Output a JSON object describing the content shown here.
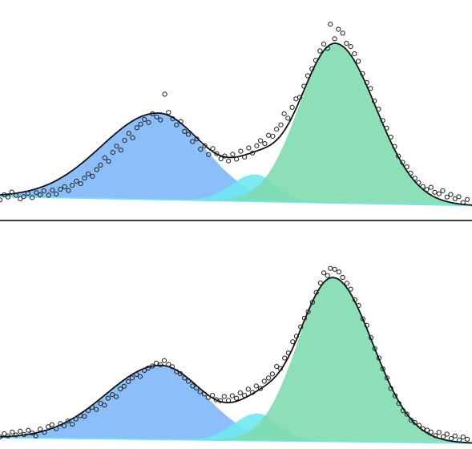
{
  "colors": {
    "peak_1": "#7fb8f8",
    "peak_2": "#6fe8ef",
    "peak_3": "#7fdcae",
    "envelope": "#111111",
    "points": "#222222",
    "axis": "#000000",
    "background": "#ffffff"
  },
  "chart_data": [
    {
      "type": "area",
      "title": "",
      "xlabel": "",
      "ylabel": "",
      "grid": false,
      "legend": "none",
      "xlim": [
        0,
        100
      ],
      "ylim": [
        0,
        1.0
      ],
      "baseline": {
        "start": 0.03,
        "end": -0.02
      },
      "peaks": [
        {
          "color_key": "peak_1",
          "center": 33.5,
          "height": 0.48,
          "left_width": 12.0,
          "right_width": 9.8
        },
        {
          "color_key": "peak_2",
          "center": 54.0,
          "height": 0.15,
          "left_width": 5.0,
          "right_width": 4.6
        },
        {
          "color_key": "peak_3",
          "center": 71.0,
          "height": 0.885,
          "left_width": 7.6,
          "right_width": 8.6
        }
      ],
      "envelope": true,
      "points": [
        [
          0.0,
          0.012
        ],
        [
          0.9,
          0.04
        ],
        [
          1.7,
          0.028
        ],
        [
          2.5,
          0.055
        ],
        [
          3.4,
          0.037
        ],
        [
          4.3,
          0.018
        ],
        [
          5.0,
          0.03
        ],
        [
          5.9,
          0.048
        ],
        [
          6.8,
          0.025
        ],
        [
          7.7,
          0.052
        ],
        [
          8.5,
          0.04
        ],
        [
          9.3,
          0.062
        ],
        [
          10.3,
          0.038
        ],
        [
          11.1,
          0.066
        ],
        [
          11.9,
          0.045
        ],
        [
          12.8,
          0.071
        ],
        [
          13.7,
          0.085
        ],
        [
          14.5,
          0.064
        ],
        [
          15.3,
          0.093
        ],
        [
          16.2,
          0.116
        ],
        [
          17.1,
          0.102
        ],
        [
          17.9,
          0.133
        ],
        [
          18.7,
          0.156
        ],
        [
          19.6,
          0.143
        ],
        [
          20.5,
          0.18
        ],
        [
          21.3,
          0.205
        ],
        [
          22.2,
          0.245
        ],
        [
          23.0,
          0.226
        ],
        [
          23.9,
          0.275
        ],
        [
          24.7,
          0.31
        ],
        [
          25.6,
          0.288
        ],
        [
          26.4,
          0.342
        ],
        [
          27.3,
          0.381
        ],
        [
          28.1,
          0.356
        ],
        [
          29.0,
          0.412
        ],
        [
          29.8,
          0.432
        ],
        [
          30.6,
          0.458
        ],
        [
          31.5,
          0.441
        ],
        [
          32.3,
          0.489
        ],
        [
          33.2,
          0.472
        ],
        [
          34.0,
          0.455
        ],
        [
          34.9,
          0.598
        ],
        [
          35.7,
          0.497
        ],
        [
          36.6,
          0.462
        ],
        [
          37.4,
          0.428
        ],
        [
          38.3,
          0.446
        ],
        [
          39.1,
          0.392
        ],
        [
          39.9,
          0.375
        ],
        [
          40.8,
          0.335
        ],
        [
          41.7,
          0.35
        ],
        [
          42.5,
          0.293
        ],
        [
          43.4,
          0.312
        ],
        [
          44.2,
          0.263
        ],
        [
          45.1,
          0.296
        ],
        [
          45.9,
          0.268
        ],
        [
          46.8,
          0.24
        ],
        [
          47.6,
          0.255
        ],
        [
          48.4,
          0.228
        ],
        [
          49.3,
          0.265
        ],
        [
          50.1,
          0.238
        ],
        [
          51.0,
          0.282
        ],
        [
          51.8,
          0.25
        ],
        [
          52.7,
          0.3
        ],
        [
          53.5,
          0.272
        ],
        [
          54.4,
          0.312
        ],
        [
          55.2,
          0.34
        ],
        [
          56.1,
          0.324
        ],
        [
          56.9,
          0.37
        ],
        [
          57.8,
          0.365
        ],
        [
          58.6,
          0.404
        ],
        [
          59.5,
          0.428
        ],
        [
          60.2,
          0.49
        ],
        [
          61.0,
          0.465
        ],
        [
          61.9,
          0.525
        ],
        [
          62.7,
          0.572
        ],
        [
          63.5,
          0.58
        ],
        [
          64.4,
          0.642
        ],
        [
          65.2,
          0.7
        ],
        [
          66.1,
          0.738
        ],
        [
          66.9,
          0.786
        ],
        [
          67.8,
          0.838
        ],
        [
          68.6,
          0.876
        ],
        [
          69.4,
          0.852
        ],
        [
          70.0,
          0.986
        ],
        [
          70.9,
          0.905
        ],
        [
          71.7,
          0.958
        ],
        [
          72.6,
          0.936
        ],
        [
          73.4,
          0.88
        ],
        [
          74.3,
          0.862
        ],
        [
          75.1,
          0.822
        ],
        [
          75.9,
          0.78
        ],
        [
          76.8,
          0.712
        ],
        [
          77.7,
          0.662
        ],
        [
          78.5,
          0.63
        ],
        [
          79.3,
          0.56
        ],
        [
          80.2,
          0.515
        ],
        [
          81.1,
          0.452
        ],
        [
          81.9,
          0.41
        ],
        [
          82.8,
          0.36
        ],
        [
          83.6,
          0.308
        ],
        [
          84.4,
          0.255
        ],
        [
          85.3,
          0.22
        ],
        [
          86.2,
          0.195
        ],
        [
          87.0,
          0.16
        ],
        [
          87.9,
          0.132
        ],
        [
          88.7,
          0.108
        ],
        [
          89.6,
          0.086
        ],
        [
          90.4,
          0.07
        ],
        [
          91.3,
          0.082
        ],
        [
          92.1,
          0.054
        ],
        [
          93.0,
          0.046
        ],
        [
          93.8,
          0.063
        ],
        [
          94.7,
          0.028
        ],
        [
          95.5,
          0.042
        ],
        [
          96.4,
          0.018
        ],
        [
          97.2,
          0.03
        ],
        [
          98.1,
          -0.003
        ],
        [
          99.0,
          0.014
        ]
      ]
    },
    {
      "type": "area",
      "title": "",
      "xlabel": "",
      "ylabel": "",
      "grid": false,
      "legend": "none",
      "xlim": [
        0,
        100
      ],
      "ylim": [
        0,
        1.0
      ],
      "baseline": {
        "start": 0.0,
        "end": -0.03
      },
      "peaks": [
        {
          "color_key": "peak_1",
          "center": 34.0,
          "height": 0.41,
          "left_width": 11.5,
          "right_width": 9.4
        },
        {
          "color_key": "peak_2",
          "center": 54.5,
          "height": 0.15,
          "left_width": 5.0,
          "right_width": 4.6
        },
        {
          "color_key": "peak_3",
          "center": 70.5,
          "height": 0.905,
          "left_width": 7.4,
          "right_width": 8.4
        }
      ],
      "envelope": true,
      "points": [
        [
          0.0,
          0.005
        ],
        [
          0.9,
          0.022
        ],
        [
          1.7,
          0.01
        ],
        [
          2.6,
          0.032
        ],
        [
          3.4,
          0.015
        ],
        [
          4.3,
          0.036
        ],
        [
          5.1,
          0.018
        ],
        [
          6.0,
          0.041
        ],
        [
          6.8,
          0.026
        ],
        [
          7.6,
          0.01
        ],
        [
          8.5,
          0.048
        ],
        [
          9.4,
          0.03
        ],
        [
          10.2,
          0.06
        ],
        [
          11.0,
          0.072
        ],
        [
          11.9,
          0.05
        ],
        [
          12.8,
          0.078
        ],
        [
          13.6,
          0.066
        ],
        [
          14.4,
          0.092
        ],
        [
          15.3,
          0.075
        ],
        [
          16.1,
          0.104
        ],
        [
          17.0,
          0.122
        ],
        [
          17.9,
          0.118
        ],
        [
          18.7,
          0.15
        ],
        [
          19.5,
          0.168
        ],
        [
          20.4,
          0.156
        ],
        [
          21.3,
          0.19
        ],
        [
          22.1,
          0.18
        ],
        [
          22.9,
          0.218
        ],
        [
          23.8,
          0.238
        ],
        [
          24.6,
          0.227
        ],
        [
          25.5,
          0.27
        ],
        [
          26.3,
          0.284
        ],
        [
          27.2,
          0.31
        ],
        [
          28.0,
          0.33
        ],
        [
          28.9,
          0.35
        ],
        [
          29.7,
          0.338
        ],
        [
          30.6,
          0.372
        ],
        [
          31.4,
          0.385
        ],
        [
          32.3,
          0.396
        ],
        [
          33.1,
          0.412
        ],
        [
          34.0,
          0.403
        ],
        [
          34.8,
          0.426
        ],
        [
          35.7,
          0.405
        ],
        [
          36.5,
          0.392
        ],
        [
          37.4,
          0.365
        ],
        [
          38.2,
          0.354
        ],
        [
          39.1,
          0.33
        ],
        [
          39.9,
          0.312
        ],
        [
          40.8,
          0.286
        ],
        [
          41.6,
          0.275
        ],
        [
          42.4,
          0.254
        ],
        [
          43.3,
          0.242
        ],
        [
          44.1,
          0.222
        ],
        [
          45.0,
          0.234
        ],
        [
          45.8,
          0.21
        ],
        [
          46.7,
          0.205
        ],
        [
          47.5,
          0.228
        ],
        [
          48.4,
          0.206
        ],
        [
          49.2,
          0.232
        ],
        [
          50.1,
          0.218
        ],
        [
          50.9,
          0.248
        ],
        [
          51.8,
          0.234
        ],
        [
          52.6,
          0.268
        ],
        [
          53.5,
          0.25
        ],
        [
          54.3,
          0.286
        ],
        [
          55.2,
          0.272
        ],
        [
          56.0,
          0.312
        ],
        [
          56.9,
          0.33
        ],
        [
          57.7,
          0.352
        ],
        [
          58.6,
          0.394
        ],
        [
          59.4,
          0.382
        ],
        [
          60.3,
          0.44
        ],
        [
          61.1,
          0.468
        ],
        [
          62.0,
          0.53
        ],
        [
          62.8,
          0.56
        ],
        [
          63.7,
          0.612
        ],
        [
          64.5,
          0.66
        ],
        [
          65.3,
          0.695
        ],
        [
          66.2,
          0.748
        ],
        [
          67.0,
          0.802
        ],
        [
          67.9,
          0.855
        ],
        [
          68.6,
          0.91
        ],
        [
          69.4,
          0.895
        ],
        [
          70.0,
          0.935
        ],
        [
          70.9,
          0.93
        ],
        [
          71.8,
          0.915
        ],
        [
          72.6,
          0.885
        ],
        [
          73.5,
          0.852
        ],
        [
          74.3,
          0.82
        ],
        [
          75.2,
          0.762
        ],
        [
          76.0,
          0.73
        ],
        [
          76.9,
          0.656
        ],
        [
          77.7,
          0.62
        ],
        [
          78.6,
          0.552
        ],
        [
          79.4,
          0.492
        ],
        [
          80.3,
          0.44
        ],
        [
          81.1,
          0.38
        ],
        [
          82.0,
          0.33
        ],
        [
          82.8,
          0.272
        ],
        [
          83.7,
          0.232
        ],
        [
          84.5,
          0.19
        ],
        [
          85.4,
          0.15
        ],
        [
          86.2,
          0.13
        ],
        [
          87.1,
          0.098
        ],
        [
          87.9,
          0.084
        ],
        [
          88.8,
          0.068
        ],
        [
          89.6,
          0.05
        ],
        [
          90.5,
          0.042
        ],
        [
          91.3,
          0.032
        ],
        [
          92.2,
          0.012
        ],
        [
          93.0,
          0.03
        ],
        [
          93.9,
          0.006
        ],
        [
          94.7,
          0.02
        ],
        [
          95.6,
          -0.004
        ],
        [
          96.4,
          0.01
        ],
        [
          97.3,
          -0.012
        ],
        [
          98.1,
          0.004
        ],
        [
          99.0,
          -0.008
        ]
      ]
    }
  ]
}
